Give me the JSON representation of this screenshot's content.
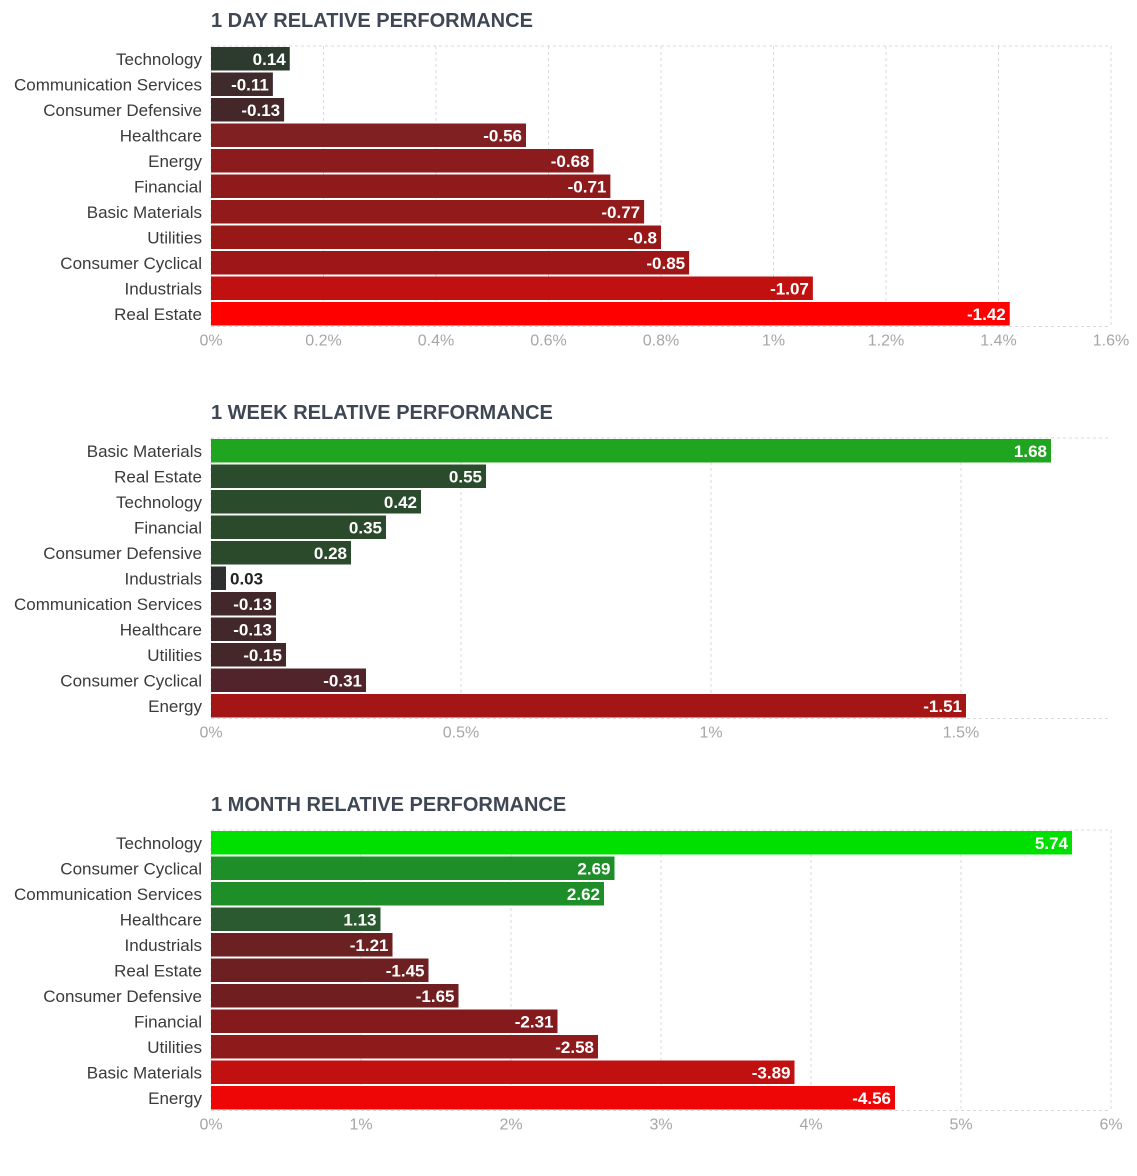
{
  "chart_data": [
    {
      "type": "bar",
      "orientation": "horizontal",
      "title": "1 DAY RELATIVE PERFORMANCE",
      "categories": [
        "Technology",
        "Communication Services",
        "Consumer Defensive",
        "Healthcare",
        "Energy",
        "Financial",
        "Basic Materials",
        "Utilities",
        "Consumer Cyclical",
        "Industrials",
        "Real Estate"
      ],
      "values": [
        0.14,
        -0.11,
        -0.13,
        -0.56,
        -0.68,
        -0.71,
        -0.77,
        -0.8,
        -0.85,
        -1.07,
        -1.42
      ],
      "value_labels": [
        "0.14",
        "-0.11",
        "-0.13",
        "-0.56",
        "-0.68",
        "-0.71",
        "-0.77",
        "-0.8",
        "-0.85",
        "-1.07",
        "-1.42"
      ],
      "bar_colors": [
        "#2c3b2d",
        "#3f2a2c",
        "#432729",
        "#802022",
        "#8b1b1d",
        "#8e1a1c",
        "#931a1b",
        "#981818",
        "#9e1617",
        "#c01010",
        "#ff0000"
      ],
      "xlim": [
        0,
        1.6
      ],
      "ticks": [
        0,
        0.2,
        0.4,
        0.6,
        0.8,
        1,
        1.2,
        1.4,
        1.6
      ],
      "tick_labels": [
        "0%",
        "0.2%",
        "0.4%",
        "0.6%",
        "0.8%",
        "1%",
        "1.2%",
        "1.4%",
        "1.6%"
      ],
      "grid": true
    },
    {
      "type": "bar",
      "orientation": "horizontal",
      "title": "1 WEEK RELATIVE PERFORMANCE",
      "categories": [
        "Basic Materials",
        "Real Estate",
        "Technology",
        "Financial",
        "Consumer Defensive",
        "Industrials",
        "Communication Services",
        "Healthcare",
        "Utilities",
        "Consumer Cyclical",
        "Energy"
      ],
      "values": [
        1.68,
        0.55,
        0.42,
        0.35,
        0.28,
        0.03,
        -0.13,
        -0.13,
        -0.15,
        -0.31,
        -1.51
      ],
      "value_labels": [
        "1.68",
        "0.55",
        "0.42",
        "0.35",
        "0.28",
        "0.03",
        "-0.13",
        "-0.13",
        "-0.15",
        "-0.31",
        "-1.51"
      ],
      "bar_colors": [
        "#1fa51f",
        "#2b4c2c",
        "#2b4c2c",
        "#2b4a2c",
        "#2b4a2c",
        "#2e302f",
        "#42282a",
        "#42282a",
        "#432729",
        "#50242a",
        "#a41515"
      ],
      "xlim": [
        0,
        1.8
      ],
      "ticks": [
        0,
        0.5,
        1,
        1.5
      ],
      "tick_labels": [
        "0%",
        "0.5%",
        "1%",
        "1.5%"
      ],
      "grid": true
    },
    {
      "type": "bar",
      "orientation": "horizontal",
      "title": "1 MONTH RELATIVE PERFORMANCE",
      "categories": [
        "Technology",
        "Consumer Cyclical",
        "Communication Services",
        "Healthcare",
        "Industrials",
        "Real Estate",
        "Consumer Defensive",
        "Financial",
        "Utilities",
        "Basic Materials",
        "Energy"
      ],
      "values": [
        5.74,
        2.69,
        2.62,
        1.13,
        -1.21,
        -1.45,
        -1.65,
        -2.31,
        -2.58,
        -3.89,
        -4.56
      ],
      "value_labels": [
        "5.74",
        "2.69",
        "2.62",
        "1.13",
        "-1.21",
        "-1.45",
        "-1.65",
        "-2.31",
        "-2.58",
        "-3.89",
        "-4.56"
      ],
      "bar_colors": [
        "#00e000",
        "#1e8f28",
        "#1e8f28",
        "#2b5a31",
        "#6b2022",
        "#6d1f21",
        "#711e20",
        "#851a1c",
        "#8e1a1c",
        "#c01010",
        "#ee0606"
      ],
      "xlim": [
        0,
        6
      ],
      "ticks": [
        0,
        1,
        2,
        3,
        4,
        5,
        6
      ],
      "tick_labels": [
        "0%",
        "1%",
        "2%",
        "3%",
        "4%",
        "5%",
        "6%"
      ],
      "grid": true
    }
  ]
}
